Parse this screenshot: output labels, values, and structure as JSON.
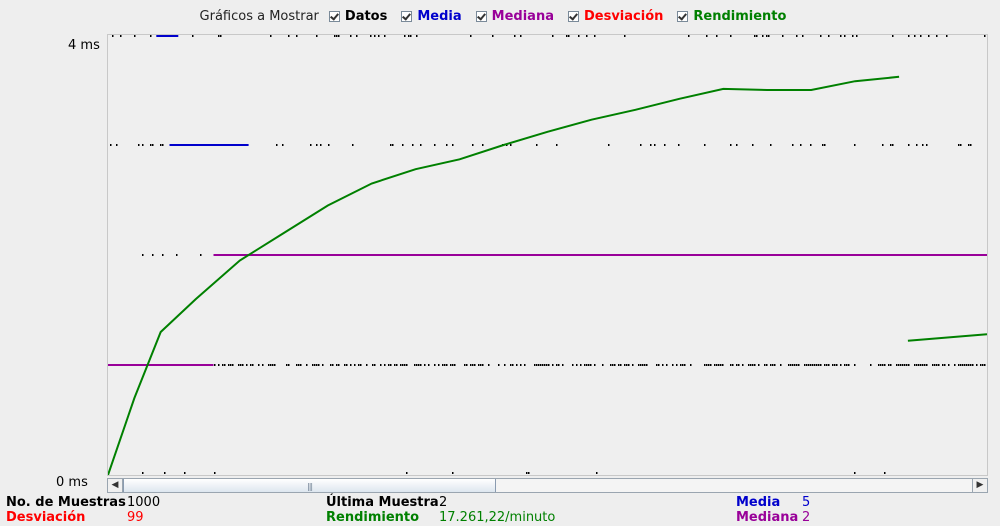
{
  "legend": {
    "title": "Gráficos a Mostrar",
    "items": [
      {
        "label": "Datos",
        "color": "#000000",
        "checked": true
      },
      {
        "label": "Media",
        "color": "#0000cc",
        "checked": true
      },
      {
        "label": "Mediana",
        "color": "#990099",
        "checked": true
      },
      {
        "label": "Desviación",
        "color": "#ff0000",
        "checked": true
      },
      {
        "label": "Rendimiento",
        "color": "#008000",
        "checked": true
      }
    ]
  },
  "chart_data": {
    "type": "line",
    "title": "",
    "xlabel": "",
    "ylabel": "",
    "y_tick_labels": [
      "4 ms",
      "0 ms"
    ],
    "ylim": [
      0,
      4
    ],
    "grid": false,
    "legend_position": "top",
    "series": [
      {
        "name": "Datos",
        "color": "#000000",
        "style": "dots",
        "levels_ms": [
          4,
          3,
          2,
          1,
          0
        ]
      },
      {
        "name": "Media",
        "color": "#0000cc",
        "segments": [
          {
            "x": [
              0.07,
              0.16
            ],
            "y": [
              3,
              3
            ]
          },
          {
            "x": [
              0.055,
              0.08
            ],
            "y": [
              4,
              4
            ]
          }
        ]
      },
      {
        "name": "Mediana",
        "color": "#990099",
        "segments": [
          {
            "x": [
              0.0,
              0.12
            ],
            "y": [
              1,
              1
            ]
          },
          {
            "x": [
              0.12,
              1.0
            ],
            "y": [
              2,
              2
            ]
          }
        ]
      },
      {
        "name": "Rendimiento",
        "color": "#008000",
        "segments": [
          {
            "x": [
              0.0,
              0.03,
              0.06,
              0.1,
              0.15,
              0.2,
              0.25,
              0.3,
              0.35,
              0.4,
              0.45,
              0.5,
              0.55,
              0.6,
              0.65,
              0.7,
              0.75,
              0.8,
              0.85,
              0.9
            ],
            "y": [
              0.0,
              0.7,
              1.3,
              1.6,
              1.95,
              2.2,
              2.45,
              2.65,
              2.78,
              2.87,
              3.0,
              3.12,
              3.23,
              3.32,
              3.42,
              3.51,
              3.5,
              3.5,
              3.58,
              3.62
            ]
          },
          {
            "x": [
              0.91,
              1.0
            ],
            "y": [
              1.22,
              1.28
            ]
          }
        ]
      }
    ]
  },
  "scrollbar": {
    "left_arrow": "◀",
    "right_arrow": "▶",
    "grip": "|||"
  },
  "stats": {
    "samples_label": "No. de Muestras",
    "samples_value": "1000",
    "last_label": "Última Muestra",
    "last_value": "2",
    "mean_label": "Media",
    "mean_value": "5",
    "deviation_label": "Desviación",
    "deviation_value": "99",
    "throughput_label": "Rendimiento",
    "throughput_value": "17.261,22/minuto",
    "median_label": "Mediana",
    "median_value": "2"
  }
}
